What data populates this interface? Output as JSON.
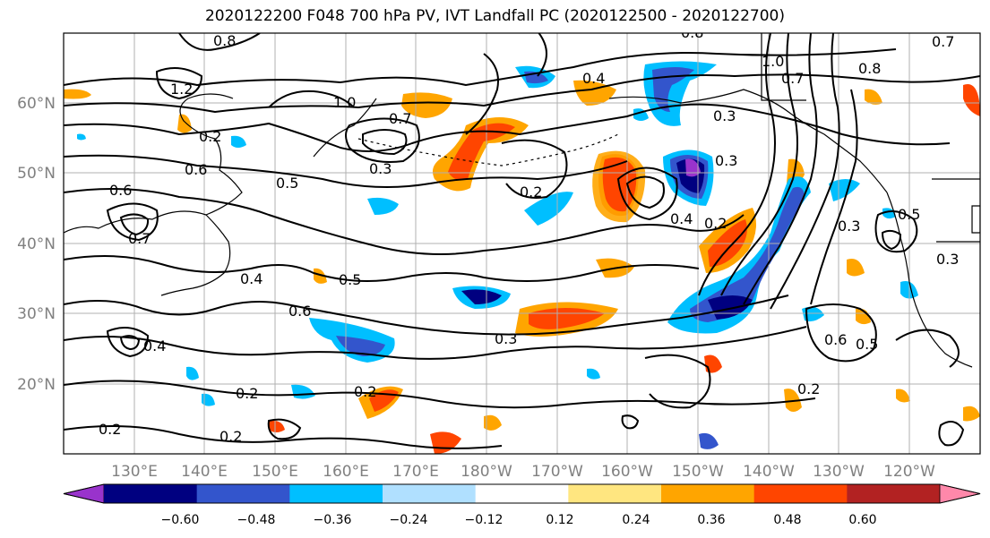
{
  "title": "2020122200 F048 700 hPa PV, IVT Landfall PC (2020122500 - 2020122700)",
  "latitude_labels": [
    "60°N",
    "50°N",
    "40°N",
    "30°N",
    "20°N"
  ],
  "longitude_labels": [
    "130°E",
    "140°E",
    "150°E",
    "160°E",
    "170°E",
    "180°W",
    "170°W",
    "160°W",
    "150°W",
    "140°W",
    "130°W",
    "120°W"
  ],
  "colorbar": {
    "tick_labels": [
      "−0.60",
      "−0.48",
      "−0.36",
      "−0.24",
      "−0.12",
      "0.12",
      "0.24",
      "0.36",
      "0.48",
      "0.60"
    ],
    "colors": [
      "#9933cc",
      "#000080",
      "#3355cc",
      "#00bfff",
      "#b0e0ff",
      "#ffffff",
      "#ffe680",
      "#ffa500",
      "#ff4500",
      "#b22222",
      "#ff88aa"
    ]
  },
  "contour_labels": [
    "0.8",
    "1.2",
    "1.0",
    "0.7",
    "0.2",
    "0.6",
    "0.6",
    "0.7",
    "0.5",
    "0.3",
    "0.4",
    "0.4",
    "0.5",
    "0.6",
    "0.3",
    "0.2",
    "0.2",
    "0.2",
    "0.2",
    "0.3",
    "0.4",
    "0.3",
    "0.4",
    "0.2",
    "0.3",
    "0.8",
    "1.0",
    "0.7",
    "0.8",
    "0.5",
    "0.3",
    "0.6",
    "0.5",
    "0.2",
    "0.2",
    "0.7"
  ]
}
